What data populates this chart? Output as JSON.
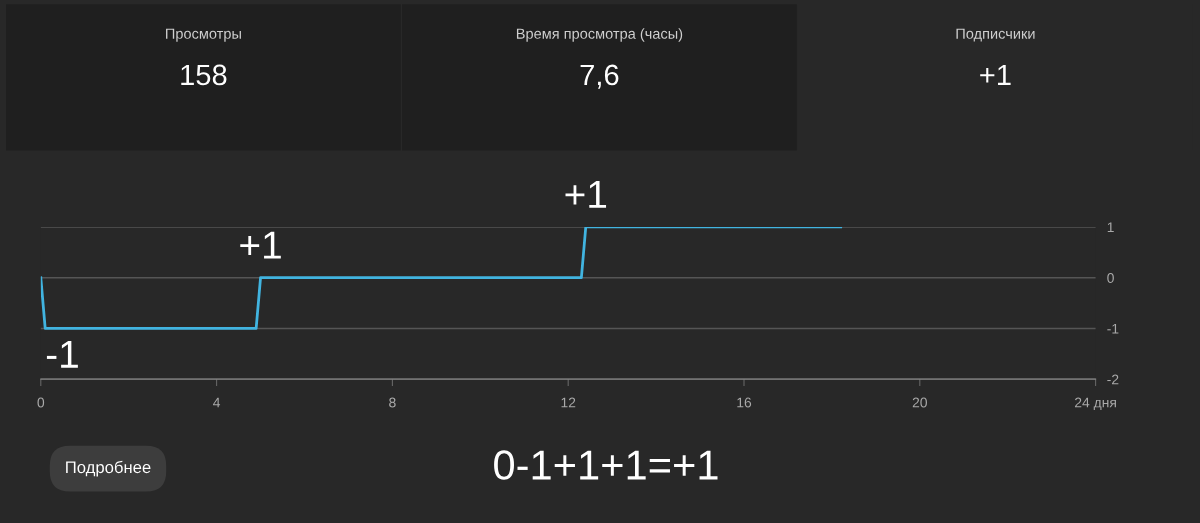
{
  "chart_data": [
    {
      "type": "other",
      "title": "Просмотры",
      "subtitle": "158"
    },
    {
      "type": "other",
      "title": "Время просмотра (часы)",
      "subtitle": "7,6"
    },
    {
      "type": "other",
      "title": "Подписчики",
      "subtitle": "+1"
    },
    {
      "type": "line",
      "x": [
        0,
        0.1,
        4.9,
        5,
        12.3,
        12.4,
        18.2
      ],
      "series": [
        {
          "color": "#41b4e0",
          "values": [
            0,
            -1,
            -1,
            0,
            0,
            1,
            1
          ]
        }
      ],
      "xlim": [
        0,
        24
      ],
      "xticks": [
        0,
        4,
        8,
        12,
        16,
        20,
        {
          "value": 24,
          "label": "24 дня"
        }
      ],
      "ylim": [
        -2,
        1
      ],
      "yticks": [
        -2,
        -1,
        0,
        1
      ],
      "grid": "y",
      "legend": false,
      "marker": "none",
      "line_style": "solid",
      "annotations": [
        {
          "text": "-1",
          "x": 0.1,
          "y": -1
        },
        {
          "text": "+1",
          "x": 5,
          "y": 0
        },
        {
          "text": "+1",
          "x": 12.4,
          "y": 1
        },
        "Подробнее",
        "0-1+1+1=+1"
      ]
    }
  ]
}
